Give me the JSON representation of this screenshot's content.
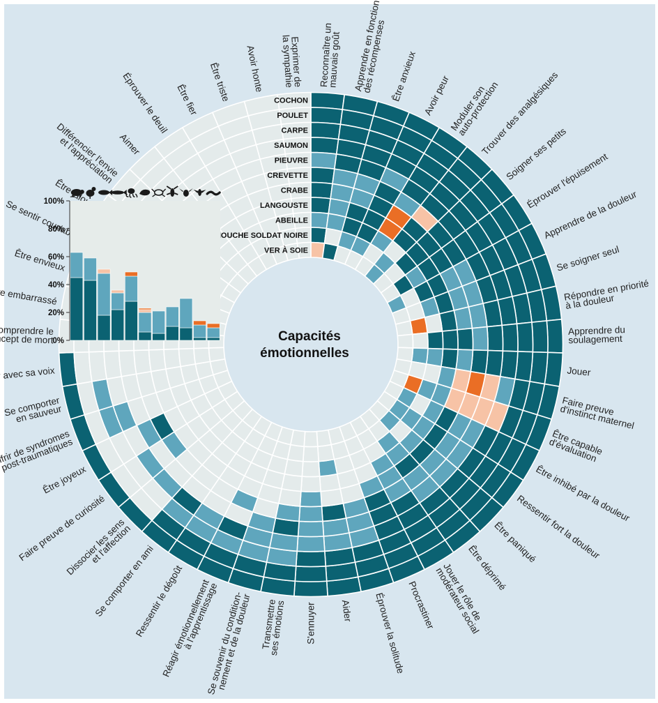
{
  "title_lines": [
    "Capacités",
    "émotionnelles"
  ],
  "colors": {
    "background": "#d8e6ef",
    "yes": "#0b6272",
    "likely": "#5fa6bd",
    "doubtful": "#f7c3a6",
    "no_evidence": "#ea6e25",
    "not_studied": "#e4ebeb",
    "grid": "#ffffff"
  },
  "species": [
    "COCHON",
    "POULET",
    "CARPE",
    "SAUMON",
    "PIEUVRE",
    "CREVETTE",
    "CRABE",
    "LANGOUSTE",
    "ABEILLE",
    "MOUCHE SOLDAT NOIRE",
    "VER À SOIE"
  ],
  "capacities": [
    [
      "Reconnaître un",
      "mauvais goût"
    ],
    [
      "Apprendre en fonction",
      "des récompenses"
    ],
    [
      "Être anxieux"
    ],
    [
      "Avoir peur"
    ],
    [
      "Moduler son",
      "auto-protection"
    ],
    [
      "Trouver des analgésiques"
    ],
    [
      "Soigner ses petits"
    ],
    [
      "Éprouver l'épuisement"
    ],
    [
      "Apprendre de la douleur"
    ],
    [
      "Se soigner seul"
    ],
    [
      "Répondre en priorité",
      "à la douleur"
    ],
    [
      "Apprendre du",
      "soulagement"
    ],
    [
      "Jouer"
    ],
    [
      "Faire preuve",
      "d'instinct maternel"
    ],
    [
      "Être capable",
      "d'évaluation"
    ],
    [
      "Être inhibé par la douleur"
    ],
    [
      "Ressentir fort la douleur"
    ],
    [
      "Être paniqué"
    ],
    [
      "Être déprimé"
    ],
    [
      "Jouer le rôle de",
      "modérateur social"
    ],
    [
      "Procrastiner"
    ],
    [
      "Éprouver la solitude"
    ],
    [
      "Aider"
    ],
    [
      "S'ennuyer"
    ],
    [
      "Transmettre",
      "ses émotions"
    ],
    [
      "Se souvenir du condition-",
      "nement et de la douleur"
    ],
    [
      "Réagir émotionnellement",
      "à l'apprentissage"
    ],
    [
      "Ressentir le dégoût"
    ],
    [
      "Se comporter en ami"
    ],
    [
      "Dissocier les sens",
      "et l'affection"
    ],
    [
      "Faire preuve de curiosité"
    ],
    [
      "Être joyeux"
    ],
    [
      "Souffrir de syndromes",
      "post-traumatiques"
    ],
    [
      "Se comporter",
      "en sauveur"
    ],
    [
      "Jouer avec sa voix"
    ],
    [
      "Comprendre le",
      "concept de mort"
    ],
    [
      "Être embarrassé"
    ],
    [
      "Être envieux"
    ],
    [
      "Se sentir coupable"
    ],
    [
      "Être jaloux"
    ],
    [
      "Différencier l'envie",
      "et l'appréciation"
    ],
    [
      "Aimer"
    ],
    [
      "Éprouver le deuil"
    ],
    [
      "Être fier"
    ],
    [
      "Être triste"
    ],
    [
      "Avoir honte"
    ],
    [
      "Exprimer de",
      "la sympathie"
    ]
  ],
  "chart_data": [
    {
      "type": "heatmap",
      "title": "Capacités émotionnelles",
      "rows": [
        "COCHON",
        "POULET",
        "CARPE",
        "SAUMON",
        "PIEUVRE",
        "CREVETTE",
        "CRABE",
        "LANGOUSTE",
        "ABEILLE",
        "MOUCHE SOLDAT NOIRE",
        "VER À SOIE"
      ],
      "value_codes": {
        "1": "yes",
        "2": "likely",
        "3": "doubtful",
        "4": "no_evidence",
        "0": "not_studied"
      },
      "matrix": [
        [
          1,
          1,
          1,
          1,
          1,
          1,
          1,
          1,
          1,
          1,
          1,
          1,
          1,
          1,
          1,
          1,
          1,
          1,
          1,
          1,
          1,
          1,
          1,
          1,
          1,
          1,
          1,
          1,
          1,
          1,
          1,
          1,
          1,
          1,
          1,
          0,
          0,
          0,
          0,
          0,
          0,
          0,
          0,
          0,
          0,
          0,
          0
        ],
        [
          1,
          1,
          1,
          1,
          1,
          1,
          1,
          1,
          1,
          1,
          1,
          1,
          1,
          1,
          1,
          1,
          1,
          1,
          1,
          1,
          1,
          1,
          1,
          1,
          1,
          1,
          1,
          1,
          1,
          0,
          0,
          0,
          0,
          0,
          0,
          0,
          0,
          0,
          0,
          0,
          0,
          0,
          0,
          0,
          0,
          0,
          0
        ],
        [
          1,
          1,
          1,
          1,
          1,
          1,
          1,
          1,
          1,
          1,
          1,
          1,
          1,
          1,
          1,
          1,
          1,
          1,
          1,
          1,
          1,
          1,
          1,
          1,
          2,
          2,
          2,
          2,
          2,
          0,
          0,
          0,
          2,
          2,
          0,
          0,
          0,
          0,
          0,
          0,
          0,
          0,
          0,
          0,
          0,
          0,
          0
        ],
        [
          1,
          1,
          1,
          1,
          1,
          1,
          1,
          1,
          1,
          1,
          1,
          1,
          1,
          2,
          3,
          1,
          1,
          1,
          1,
          1,
          1,
          2,
          2,
          2,
          2,
          2,
          1,
          2,
          1,
          2,
          2,
          0,
          2,
          0,
          0,
          0,
          0,
          0,
          0,
          0,
          0,
          0,
          0,
          0,
          0,
          0,
          0
        ],
        [
          2,
          1,
          1,
          2,
          1,
          1,
          1,
          1,
          1,
          1,
          1,
          1,
          1,
          3,
          3,
          2,
          2,
          2,
          2,
          1,
          1,
          2,
          2,
          2,
          1,
          2,
          0,
          0,
          0,
          0,
          0,
          2,
          0,
          0,
          0,
          0,
          0,
          0,
          0,
          0,
          0,
          0,
          0,
          0,
          0,
          0,
          0
        ],
        [
          1,
          2,
          2,
          1,
          2,
          3,
          1,
          1,
          2,
          2,
          2,
          2,
          1,
          4,
          3,
          2,
          2,
          2,
          2,
          2,
          1,
          2,
          1,
          2,
          2,
          0,
          2,
          0,
          0,
          0,
          2,
          1,
          0,
          0,
          0,
          0,
          0,
          0,
          0,
          0,
          0,
          0,
          0,
          0,
          0,
          0,
          0
        ],
        [
          1,
          2,
          2,
          1,
          4,
          1,
          1,
          1,
          2,
          2,
          2,
          1,
          2,
          3,
          3,
          1,
          1,
          1,
          1,
          2,
          2,
          0,
          0,
          2,
          0,
          0,
          0,
          0,
          0,
          0,
          0,
          0,
          0,
          0,
          0,
          0,
          0,
          0,
          0,
          0,
          0,
          0,
          0,
          0,
          0,
          0,
          0
        ],
        [
          1,
          2,
          1,
          1,
          4,
          1,
          1,
          1,
          1,
          1,
          1,
          1,
          1,
          2,
          2,
          2,
          2,
          2,
          2,
          2,
          0,
          0,
          0,
          0,
          0,
          0,
          0,
          0,
          0,
          0,
          0,
          0,
          0,
          0,
          0,
          0,
          0,
          0,
          0,
          0,
          0,
          0,
          0,
          0,
          0,
          0,
          0
        ],
        [
          2,
          2,
          1,
          1,
          2,
          0,
          1,
          2,
          1,
          2,
          0,
          1,
          2,
          0,
          2,
          0,
          2,
          0,
          2,
          0,
          0,
          0,
          2,
          0,
          0,
          0,
          0,
          0,
          0,
          0,
          0,
          0,
          0,
          0,
          0,
          0,
          0,
          0,
          0,
          0,
          0,
          0,
          0,
          0,
          0,
          0,
          0
        ],
        [
          1,
          0,
          2,
          2,
          0,
          2,
          0,
          1,
          0,
          0,
          4,
          0,
          2,
          0,
          4,
          2,
          2,
          2,
          0,
          0,
          0,
          0,
          0,
          0,
          0,
          0,
          0,
          0,
          0,
          0,
          0,
          0,
          0,
          0,
          0,
          0,
          0,
          0,
          0,
          0,
          0,
          0,
          0,
          0,
          0,
          0,
          0
        ],
        [
          3,
          1,
          0,
          0,
          0,
          2,
          0,
          0,
          2,
          0,
          0,
          0,
          0,
          0,
          0,
          0,
          0,
          0,
          0,
          0,
          0,
          0,
          0,
          0,
          0,
          0,
          0,
          0,
          0,
          0,
          0,
          0,
          0,
          0,
          0,
          0,
          0,
          0,
          0,
          0,
          0,
          0,
          0,
          0,
          0,
          0,
          0
        ]
      ]
    },
    {
      "type": "bar",
      "stacked": true,
      "categories": [
        "COCHON",
        "POULET",
        "CARPE",
        "SAUMON",
        "PIEUVRE",
        "CREVETTE",
        "CRABE",
        "LANGOUSTE",
        "ABEILLE",
        "MOUCHE SOLDAT NOIRE",
        "VER À SOIE"
      ],
      "ylim": [
        0,
        100
      ],
      "ytick_labels": [
        "0%",
        "20%",
        "40%",
        "60%",
        "80%",
        "100%"
      ],
      "series": [
        {
          "color_key": "yes",
          "values": [
            45,
            43,
            18,
            22,
            28,
            6,
            5,
            10,
            9,
            2,
            2
          ]
        },
        {
          "color_key": "likely",
          "values": [
            18,
            16,
            30,
            12,
            18,
            14,
            16,
            14,
            21,
            9,
            7
          ]
        },
        {
          "color_key": "doubtful",
          "values": [
            0,
            0,
            3,
            2,
            0,
            2,
            0,
            0,
            0,
            0,
            0
          ]
        },
        {
          "color_key": "no_evidence",
          "values": [
            0,
            0,
            0,
            0,
            3,
            1,
            0,
            0,
            0,
            3,
            3
          ]
        }
      ],
      "background_color": "#e6ecea"
    }
  ],
  "animal_icons": [
    "pig-icon",
    "chicken-icon",
    "carp-icon",
    "salmon-icon",
    "octopus-icon",
    "shrimp-icon",
    "crab-icon",
    "lobster-icon",
    "bee-icon",
    "fly-icon",
    "silkworm-icon"
  ]
}
